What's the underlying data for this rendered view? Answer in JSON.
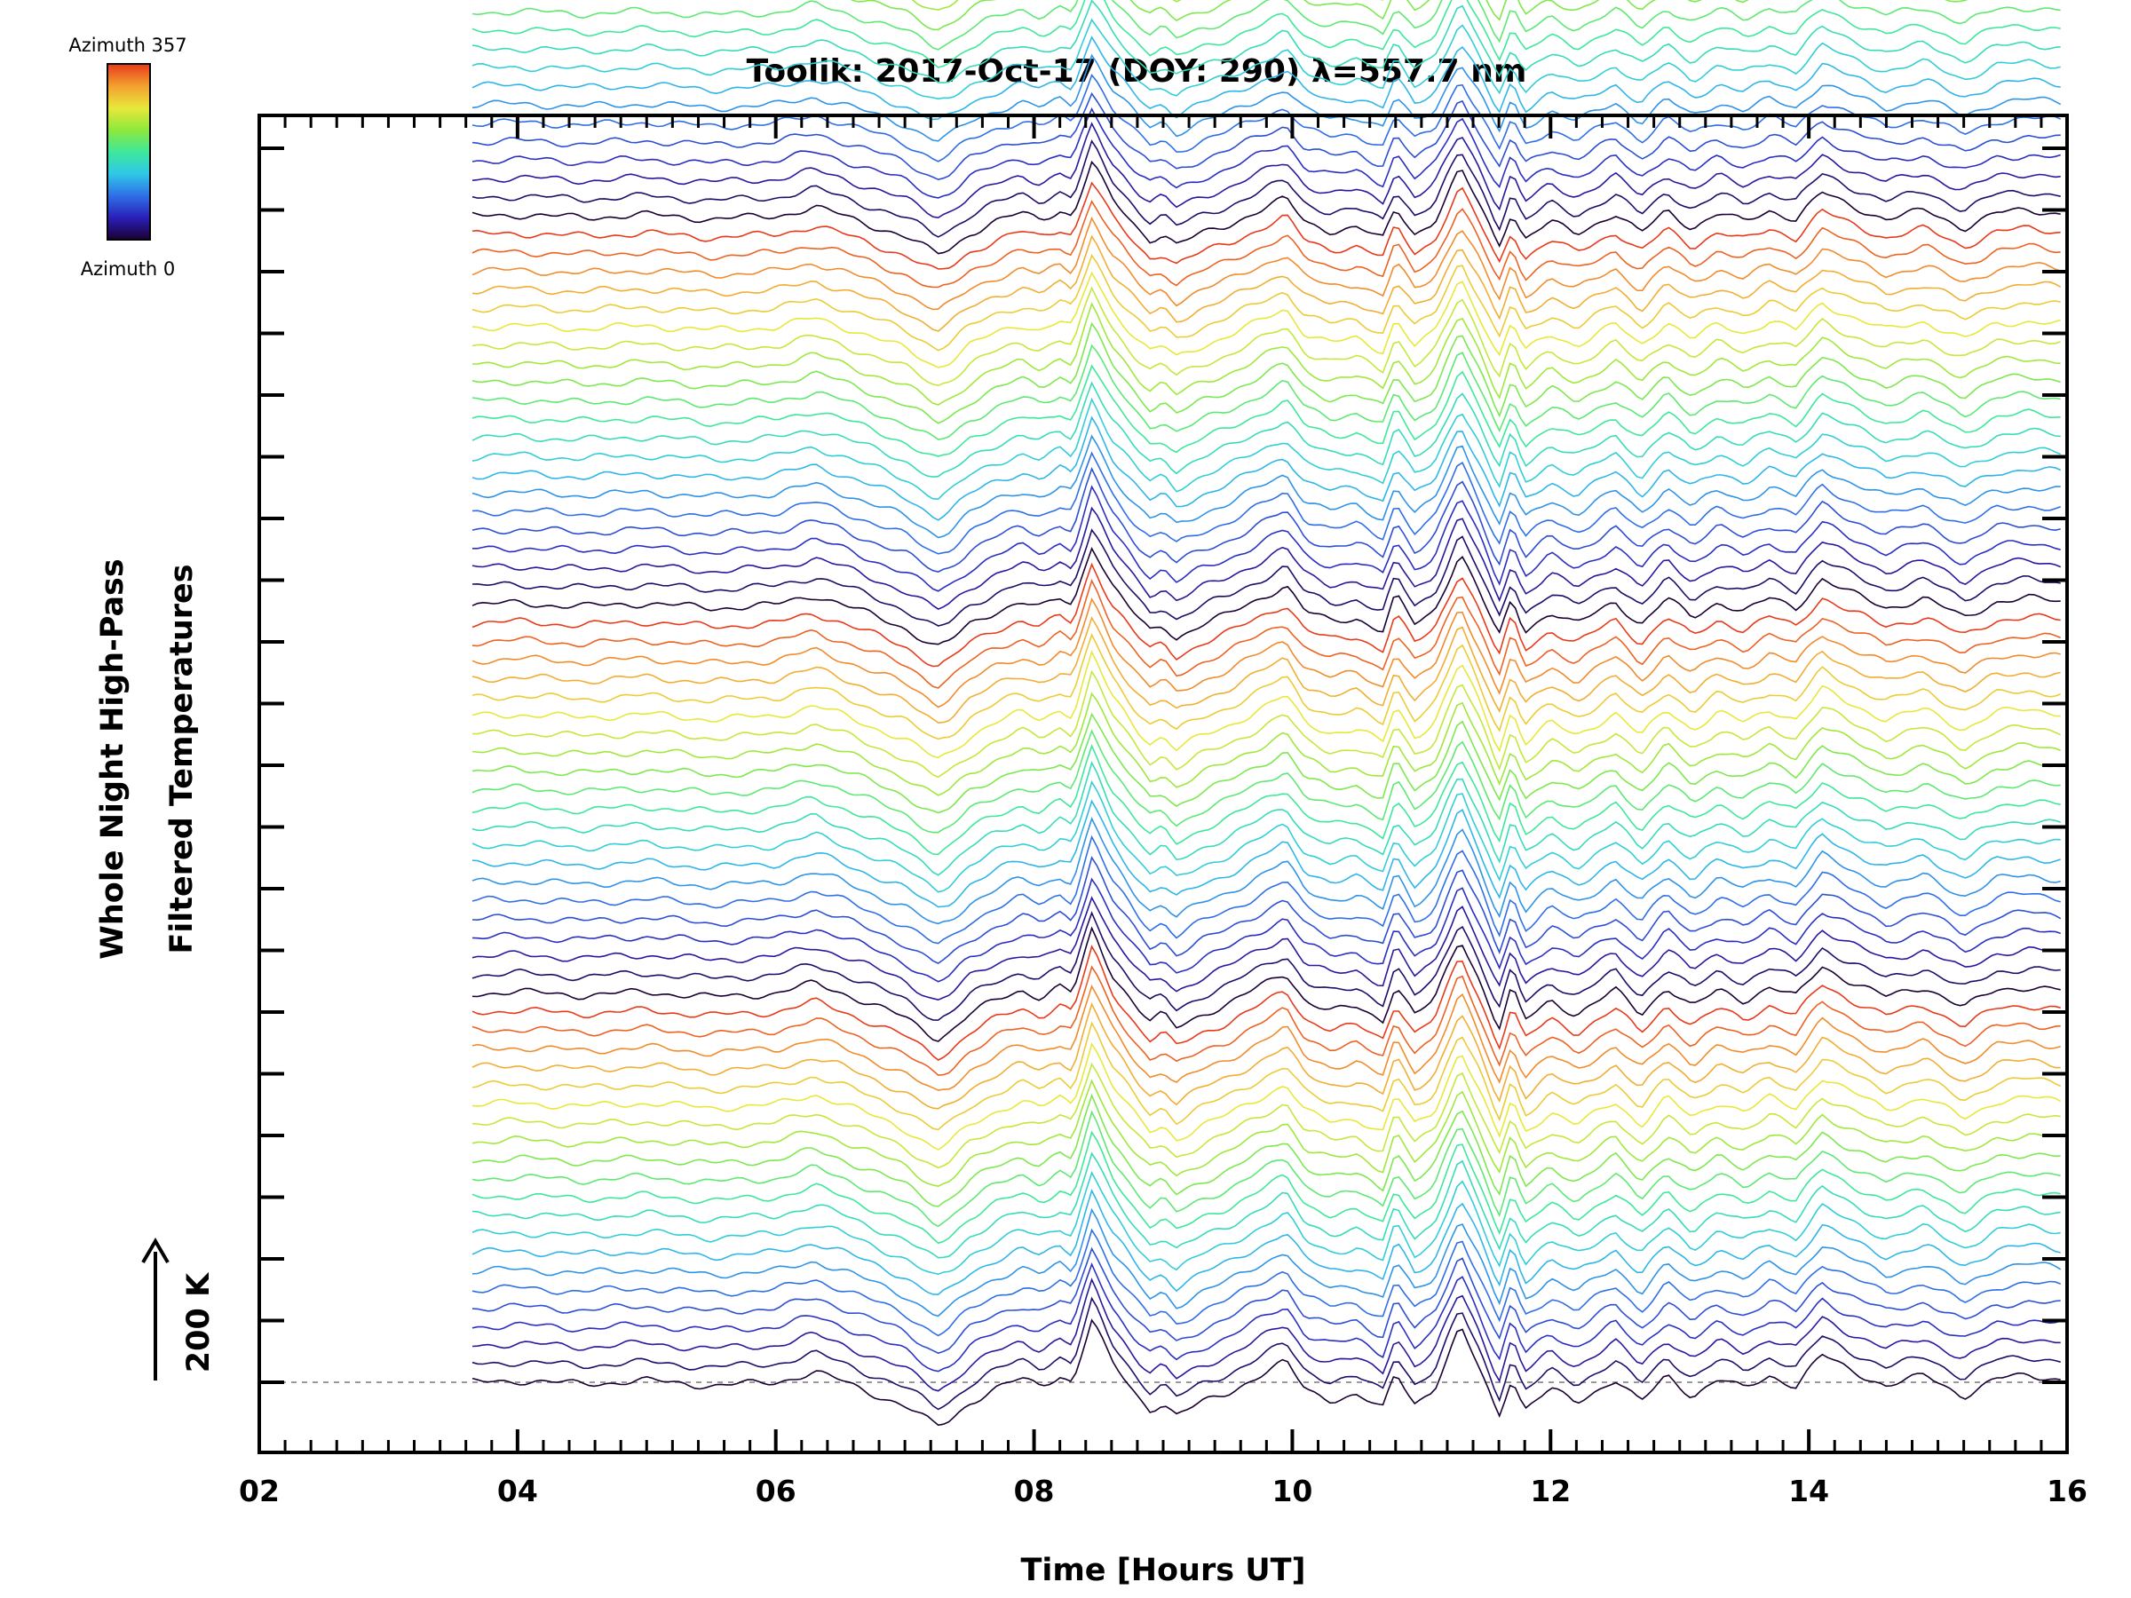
{
  "chart_data": {
    "type": "line",
    "title": "Toolik: 2017-Oct-17 (DOY: 290) λ=557.7 nm",
    "xlabel": "Time [Hours UT]",
    "ylabel_lines": [
      "Whole Night High-Pass",
      "Filtered Temperatures"
    ],
    "xlim": [
      2,
      16
    ],
    "x_ticks": [
      "02",
      "04",
      "06",
      "08",
      "10",
      "12",
      "14",
      "16"
    ],
    "scale_bar_label": "200 K",
    "scale_bar_K": 200,
    "colorbar": {
      "top_label": "Azimuth 357",
      "bottom_label": "Azimuth 0",
      "min": 0,
      "max": 357,
      "colors": [
        "#1a0033",
        "#2a1fb8",
        "#2f6fe6",
        "#2fc8e8",
        "#3ee89a",
        "#8ee83c",
        "#e8e83a",
        "#f3a030",
        "#e83a1a"
      ]
    },
    "stack": {
      "n_traces": 84,
      "offset_K": 30,
      "cycle_length": 21,
      "start_hour": 3.65,
      "end_hour": 15.95
    },
    "baseline_profile": {
      "x": [
        3.65,
        4.0,
        4.5,
        5.0,
        5.5,
        6.0,
        6.3,
        6.5,
        6.8,
        7.0,
        7.25,
        7.35,
        7.5,
        7.7,
        7.9,
        8.05,
        8.2,
        8.3,
        8.45,
        8.6,
        8.8,
        8.9,
        9.0,
        9.1,
        9.3,
        9.5,
        9.7,
        9.95,
        10.1,
        10.3,
        10.5,
        10.7,
        10.8,
        10.95,
        11.1,
        11.3,
        11.45,
        11.6,
        11.7,
        11.8,
        12.0,
        12.2,
        12.5,
        12.7,
        12.9,
        13.1,
        13.3,
        13.5,
        13.7,
        13.9,
        14.1,
        14.3,
        14.6,
        14.9,
        15.2,
        15.45,
        15.7,
        15.95
      ],
      "y": [
        0,
        5,
        -5,
        5,
        -10,
        0,
        30,
        5,
        -40,
        -70,
        -130,
        -110,
        -60,
        -20,
        10,
        -10,
        20,
        0,
        185,
        60,
        -40,
        -80,
        -60,
        -100,
        -60,
        -30,
        10,
        60,
        -20,
        -50,
        -40,
        -80,
        30,
        -60,
        -20,
        160,
        40,
        -100,
        20,
        -80,
        -20,
        -60,
        10,
        -60,
        20,
        -40,
        10,
        -20,
        20,
        -10,
        80,
        40,
        -10,
        20,
        -40,
        10,
        20,
        10
      ]
    }
  }
}
